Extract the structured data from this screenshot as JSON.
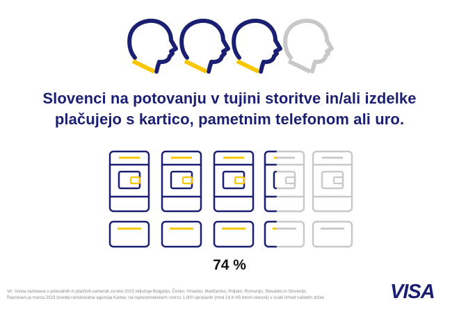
{
  "colors": {
    "navy": "#1a1f71",
    "yellow": "#f7c600",
    "grey": "#c8c8c8"
  },
  "icons": {
    "heads": [
      "head-profile-icon",
      "head-profile-icon",
      "head-profile-icon",
      "head-profile-icon"
    ],
    "devices": [
      "card-wallet-icon",
      "card-wallet-icon",
      "card-wallet-icon",
      "card-wallet-icon",
      "card-wallet-icon"
    ]
  },
  "figure": {
    "heads_total": 4,
    "heads_filled": 3,
    "share_percent": 74
  },
  "title": {
    "line1": "Slovenci na potovanju v tujini storitve in/ali izdelke",
    "line2": "plačujejo s kartico, pametnim telefonom ali uro."
  },
  "stat": {
    "value": "74 %"
  },
  "footnote": {
    "line1": "Vir: Visina raziskava o potovalnih in plačilnih namerah za leto 2023 vključuje Bolgarijo, Češko, Hrvaško, Madžarsko, Poljsko, Romunijo, Slovaško in Slovenijo.",
    "line2": "Raziskavo je marca 2023 izvedla raziskovalna agencija Kantar, na reprezentativnem vzorcu 1.000 vprašanih (med 18 in 65 letom starosti) v vsaki izmed naštetih držav."
  },
  "brand": {
    "logo": "VISA"
  }
}
